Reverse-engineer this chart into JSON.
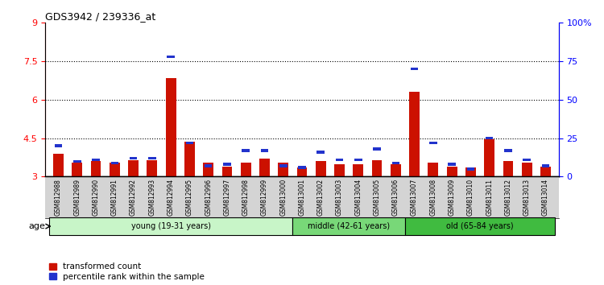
{
  "title": "GDS3942 / 239336_at",
  "categories": [
    "GSM812988",
    "GSM812989",
    "GSM812990",
    "GSM812991",
    "GSM812992",
    "GSM812993",
    "GSM812994",
    "GSM812995",
    "GSM812996",
    "GSM812997",
    "GSM812998",
    "GSM812999",
    "GSM813000",
    "GSM813001",
    "GSM813002",
    "GSM813003",
    "GSM813004",
    "GSM813005",
    "GSM813006",
    "GSM813007",
    "GSM813008",
    "GSM813009",
    "GSM813010",
    "GSM813011",
    "GSM813012",
    "GSM813013",
    "GSM813014"
  ],
  "red_values": [
    3.9,
    3.55,
    3.6,
    3.55,
    3.65,
    3.65,
    6.85,
    4.35,
    3.55,
    3.4,
    3.55,
    3.7,
    3.55,
    3.35,
    3.6,
    3.5,
    3.5,
    3.65,
    3.5,
    6.3,
    3.55,
    3.4,
    3.35,
    4.45,
    3.6,
    3.55,
    3.4
  ],
  "blue_values": [
    20,
    10,
    11,
    9,
    12,
    12,
    78,
    22,
    7,
    8,
    17,
    17,
    7,
    6,
    16,
    11,
    11,
    18,
    9,
    70,
    22,
    8,
    5,
    25,
    17,
    11,
    7
  ],
  "groups": [
    {
      "label": "young (19-31 years)",
      "start": 0,
      "end": 13,
      "color": "#c8f5c8"
    },
    {
      "label": "middle (42-61 years)",
      "start": 13,
      "end": 19,
      "color": "#78d878"
    },
    {
      "label": "old (65-84 years)",
      "start": 19,
      "end": 27,
      "color": "#40bb40"
    }
  ],
  "ylim_left": [
    3.0,
    9.0
  ],
  "ylim_right": [
    0,
    100
  ],
  "yticks_left": [
    3.0,
    4.5,
    6.0,
    7.5,
    9.0
  ],
  "yticks_right": [
    0,
    25,
    50,
    75,
    100
  ],
  "ytick_labels_left": [
    "3",
    "4.5",
    "6",
    "7.5",
    "9"
  ],
  "ytick_labels_right": [
    "0",
    "25",
    "50",
    "75",
    "100%"
  ],
  "hlines": [
    4.5,
    6.0,
    7.5
  ],
  "red_color": "#cc1100",
  "blue_color": "#2233cc",
  "bg_color": "#ffffff",
  "tick_bg_color": "#d4d4d4",
  "xlabel_age": "age",
  "legend_red": "transformed count",
  "legend_blue": "percentile rank within the sample"
}
